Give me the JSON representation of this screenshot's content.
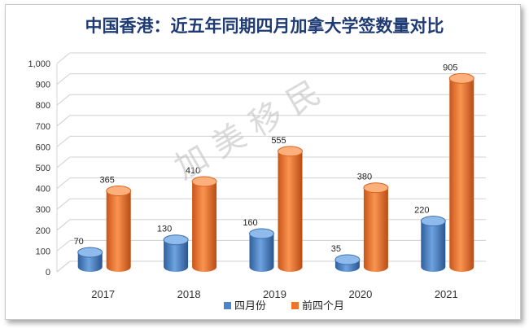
{
  "chart_data": {
    "type": "bar",
    "title": "中国香港：近五年同期四月加拿大学签数量对比",
    "categories": [
      "2017",
      "2018",
      "2019",
      "2020",
      "2021"
    ],
    "series": [
      {
        "name": "四月份",
        "values": [
          70,
          130,
          160,
          35,
          220
        ],
        "color": "#4a86c8"
      },
      {
        "name": "前四个月",
        "values": [
          365,
          410,
          555,
          380,
          905
        ],
        "color": "#f0732a"
      }
    ],
    "ylim": [
      0,
      1000
    ],
    "yticks": [
      0,
      100,
      200,
      300,
      400,
      500,
      600,
      700,
      800,
      900,
      1000
    ],
    "ytick_labels": [
      "0",
      "100",
      "200",
      "300",
      "400",
      "500",
      "600",
      "700",
      "800",
      "900",
      "1,000"
    ],
    "xlabel": "",
    "ylabel": "",
    "legend_position": "bottom",
    "grid": true
  },
  "watermark": "加 美 移 民"
}
